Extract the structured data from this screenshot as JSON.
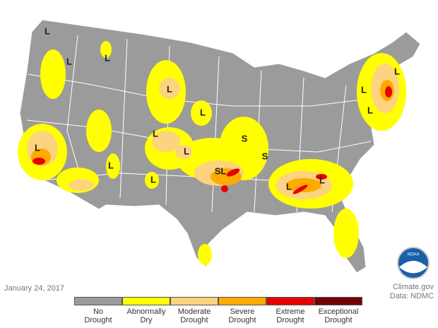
{
  "date": "January 24, 2017",
  "credit": {
    "source": "Climate.gov",
    "data": "Data: NDMC"
  },
  "logo": "NOAA",
  "legend": [
    {
      "label": "No Drought",
      "color": "#9b9b9b"
    },
    {
      "label": "Abnormally Dry",
      "color": "#ffff00"
    },
    {
      "label": "Moderate Drought",
      "color": "#fcd37f"
    },
    {
      "label": "Severe Drought",
      "color": "#ffaa00"
    },
    {
      "label": "Extreme Drought",
      "color": "#e60000"
    },
    {
      "label": "Exceptional Drought",
      "color": "#730000"
    }
  ],
  "map_labels": [
    "L",
    "L",
    "L",
    "L",
    "L",
    "L",
    "L",
    "L",
    "L",
    "L",
    "L",
    "L",
    "S",
    "SL",
    "S",
    "L",
    "L",
    "L"
  ]
}
